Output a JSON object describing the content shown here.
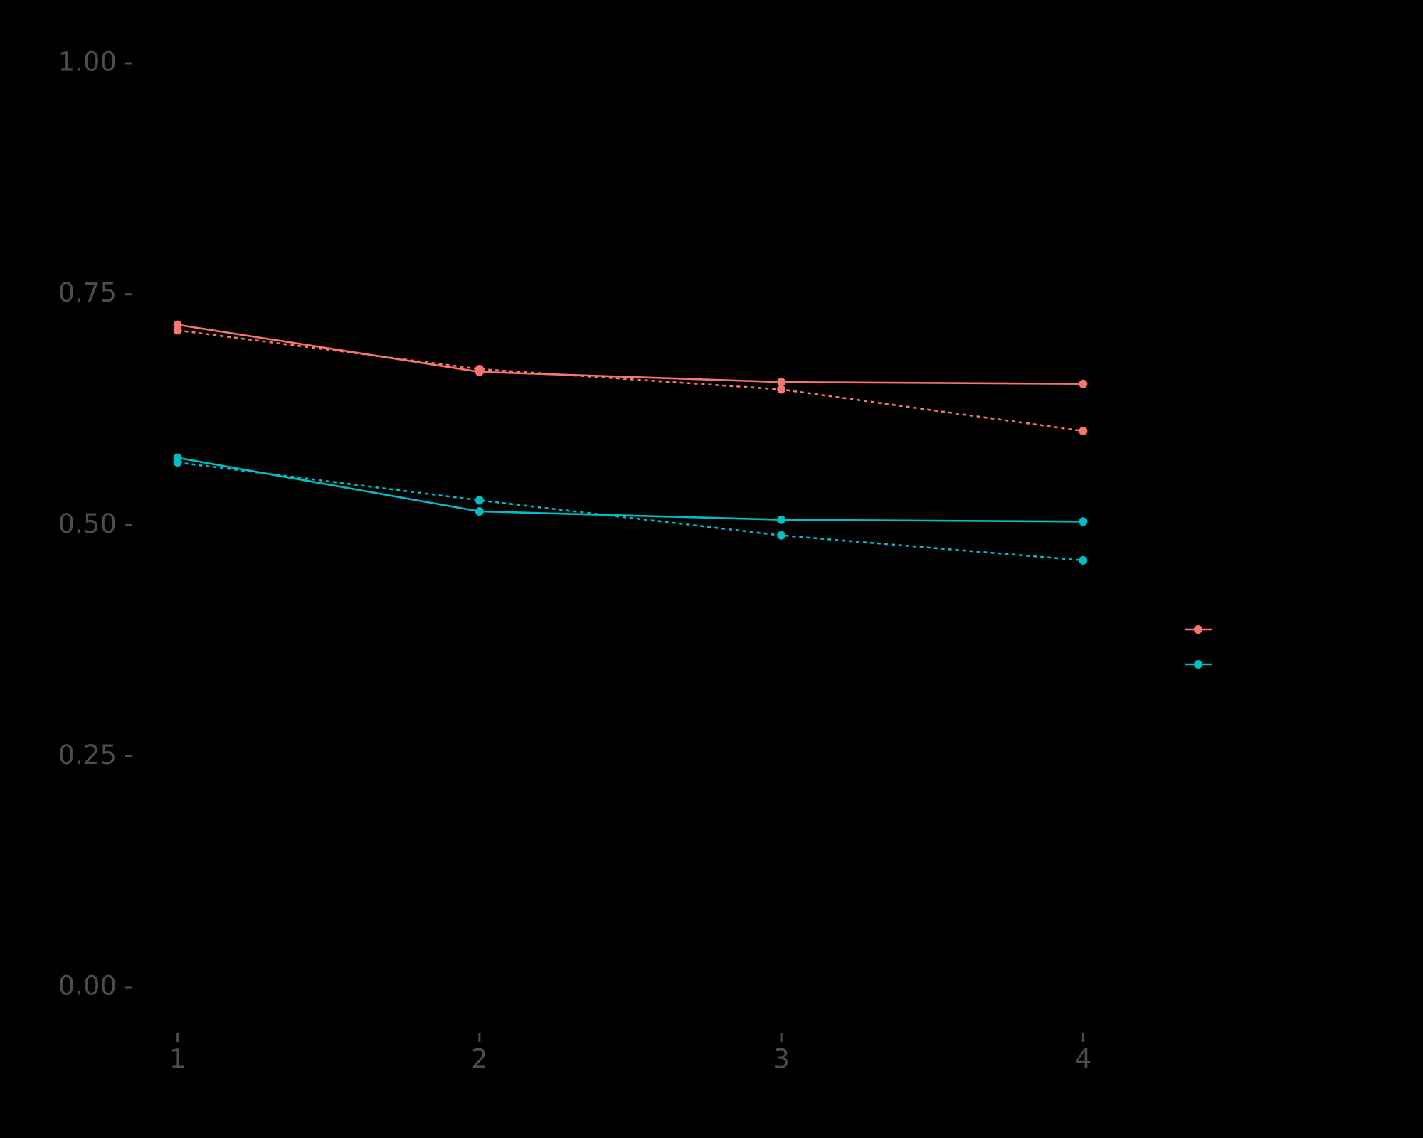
{
  "chart_data": {
    "type": "line",
    "x": [
      1,
      2,
      3,
      4
    ],
    "xlim": [
      0.85,
      4.15
    ],
    "xticks": [
      1,
      2,
      3,
      4
    ],
    "ylim": [
      -0.05,
      1.05
    ],
    "yticks": [
      {
        "value": 0,
        "label": "0.00"
      },
      {
        "value": 0.25,
        "label": "0.25"
      },
      {
        "value": 0.5,
        "label": "0.50"
      },
      {
        "value": 0.75,
        "label": "0.75"
      },
      {
        "value": 1,
        "label": "1.00"
      }
    ],
    "series": [
      {
        "color": "#f8766d",
        "linestyle": "solid",
        "values": [
          0.717,
          0.666,
          0.655,
          0.653
        ]
      },
      {
        "color": "#f8766d",
        "linestyle": "dotted",
        "values": [
          0.711,
          0.669,
          0.647,
          0.602
        ]
      },
      {
        "color": "#00bfc4",
        "linestyle": "solid",
        "values": [
          0.573,
          0.515,
          0.506,
          0.504
        ]
      },
      {
        "color": "#00bfc4",
        "linestyle": "dotted",
        "values": [
          0.568,
          0.527,
          0.489,
          0.462
        ]
      }
    ]
  }
}
